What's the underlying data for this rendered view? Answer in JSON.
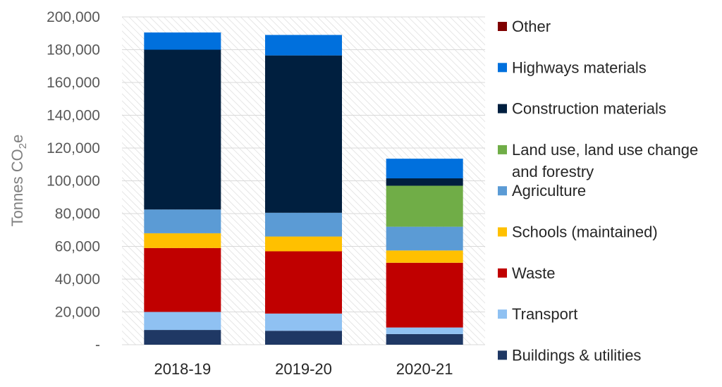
{
  "chart_data": {
    "type": "bar",
    "stacked": true,
    "title": "",
    "xlabel": "",
    "ylabel": "Tonnes CO",
    "ylabel_subscript": "2",
    "ylabel_suffix": "e",
    "ylim": [
      0,
      200000
    ],
    "yticks": [
      0,
      20000,
      40000,
      60000,
      80000,
      100000,
      120000,
      140000,
      160000,
      180000,
      200000
    ],
    "ytick_labels": [
      "-",
      "20,000",
      "40,000",
      "60,000",
      "80,000",
      "100,000",
      "120,000",
      "140,000",
      "160,000",
      "180,000",
      "200,000"
    ],
    "grid": true,
    "legend_position": "right",
    "categories": [
      "2018-19",
      "2019-20",
      "2020-21"
    ],
    "series": [
      {
        "name": "Buildings & utilities",
        "color": "#1f3864",
        "values": [
          9000,
          8500,
          6500
        ]
      },
      {
        "name": "Transport",
        "color": "#8fc1f2",
        "values": [
          11000,
          10500,
          4000
        ]
      },
      {
        "name": "Waste",
        "color": "#c00000",
        "values": [
          39000,
          38000,
          39500
        ]
      },
      {
        "name": "Schools (maintained)",
        "color": "#ffc000",
        "values": [
          9000,
          9000,
          7500
        ]
      },
      {
        "name": "Agriculture",
        "color": "#5b9bd5",
        "values": [
          14500,
          14500,
          14500
        ]
      },
      {
        "name": "Land use, land use change and forestry",
        "legend_lines": [
          "Land use, land use change",
          "and forestry"
        ],
        "color": "#70ad47",
        "values": [
          0,
          0,
          25000
        ]
      },
      {
        "name": "Construction materials",
        "color": "#001f3f",
        "values": [
          97500,
          96000,
          4500
        ]
      },
      {
        "name": "Highways materials",
        "color": "#0070dd",
        "values": [
          10500,
          12500,
          12000
        ]
      },
      {
        "name": "Other",
        "color": "#7f0000",
        "values": [
          0,
          0,
          0
        ]
      }
    ]
  }
}
